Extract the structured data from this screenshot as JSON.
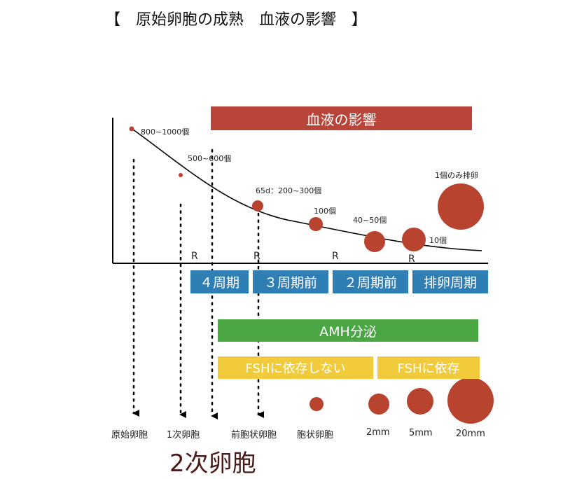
{
  "title": "【　原始卵胞の成熟　血液の影響　】",
  "colors": {
    "blood_bar": "#b9443a",
    "cycle_bar": "#2f7fb5",
    "amh_bar": "#4aa744",
    "fsh_bar": "#f2cb3c",
    "follicle": "#b8432f",
    "heading_dark": "#4b1a1a"
  },
  "bars": {
    "blood": "血液の影響",
    "cycles": [
      "４周期",
      "３周期前",
      "２周期前",
      "排卵周期"
    ],
    "amh": "AMH分泌",
    "fsh_independent": "FSHに依存しない",
    "fsh_dependent": "FSHに依存"
  },
  "count_labels": [
    "800~1000個",
    "500~600個",
    "65d：200~300個",
    "100個",
    "40~50個",
    "10個",
    "1個のみ排卵"
  ],
  "r_marker": "R",
  "stages": [
    "原始卵胞",
    "1次卵胞",
    "前胞状卵胞",
    "胞状卵胞",
    "2mm",
    "5mm",
    "20mm"
  ],
  "secondary_follicle": "2次卵胞"
}
